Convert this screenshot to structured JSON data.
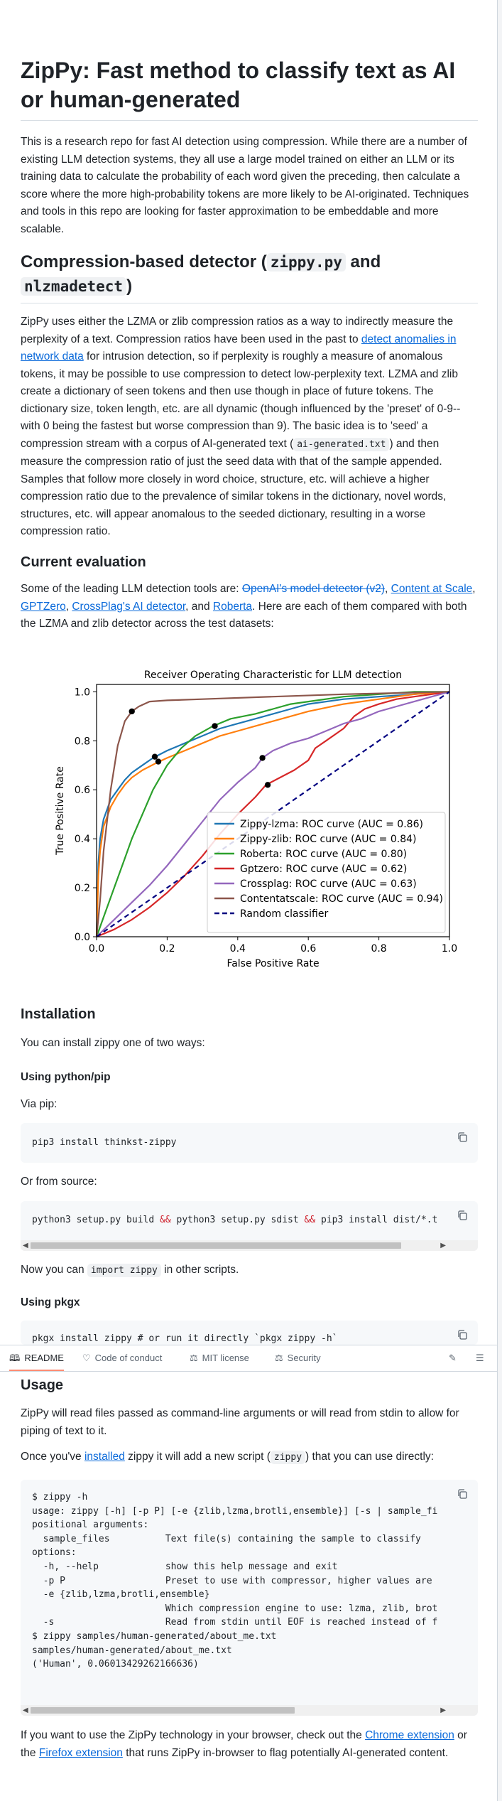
{
  "readme": {
    "title": "ZipPy: Fast method to classify text as AI or human-generated",
    "intro": "This is a research repo for fast AI detection using compression. While there are a number of existing LLM detection systems, they all use a large model trained on either an LLM or its training data to calculate the probability of each word given the preceding, then calculate a score where the more high-probability tokens are more likely to be AI-originated. Techniques and tools in this repo are looking for faster approximation to be embeddable and more scalable.",
    "section1": {
      "title_pre": "Compression-based detector (",
      "code1": "zippy.py",
      "title_mid": " and",
      "code2": "nlzmadetect",
      "title_post": ")",
      "p_a": "ZipPy uses either the LZMA or zlib compression ratios as a way to indirectly measure the perplexity of a text. Compression ratios have been used in the past to ",
      "link": "detect anomalies in network data",
      "p_b": " for intrusion detection, so if perplexity is roughly a measure of anomalous tokens, it may be possible to use compression to detect low-perplexity text. LZMA and zlib create a dictionary of seen tokens and then use though in place of future tokens. The dictionary size, token length, etc. are all dynamic (though influenced by the 'preset' of 0-9--with 0 being the fastest but worse compression than 9). The basic idea is to 'seed' a compression stream with a corpus of AI-generated text (",
      "code3": "ai-generated.txt",
      "p_c": ") and then measure the compression ratio of just the seed data with that of the sample appended. Samples that follow more closely in word choice, structure, etc. will achieve a higher compression ratio due to the prevalence of similar tokens in the dictionary, novel words, structures, etc. will appear anomalous to the seeded dictionary, resulting in a worse compression ratio."
    },
    "evaluation": {
      "title": "Current evaluation",
      "p_a": "Some of the leading LLM detection tools are: ",
      "link1": "OpenAI's model detector (v2)",
      "sep1": ", ",
      "link2": "Content at Scale",
      "sep2": ", ",
      "link3": "GPTZero",
      "sep3": ", ",
      "link4": "CrossPlag's AI detector",
      "sep4": ", and ",
      "link5": "Roberta",
      "p_b": ". Here are each of them compared with both the LZMA and zlib detector across the test datasets:"
    },
    "installation": {
      "title": "Installation",
      "p": "You can install zippy one of two ways:",
      "pip_title": "Using python/pip",
      "via_pip": "Via pip:",
      "pip_cmd": "pip3 install thinkst-zippy",
      "or_source": "Or from source:",
      "src_cmd_1": "python3 setup.py build ",
      "src_op1": "&&",
      "src_cmd_2": " python3 setup.py sdist ",
      "src_op2": "&&",
      "src_cmd_3": " pip3 install dist/*.t",
      "now_pre": "Now you can ",
      "now_code": "import zippy",
      "now_post": " in other scripts.",
      "pkgx_title": "Using pkgx",
      "pkgx_cmd": "pkgx install zippy # or run it directly `pkgx zippy -h`"
    },
    "usage": {
      "title": "Usage",
      "p1": "ZipPy will read files passed as command-line arguments or will read from stdin to allow for piping of text to it.",
      "p2_pre": "Once you've ",
      "p2_link": "installed",
      "p2_mid": " zippy it will add a new script (",
      "p2_code": "zippy",
      "p2_post": ") that you can use directly:",
      "code_lines": [
        "$ zippy -h",
        "usage: zippy [-h] [-p P] [-e {zlib,lzma,brotli,ensemble}] [-s | sample_fi",
        "",
        "positional arguments:",
        "  sample_files          Text file(s) containing the sample to classify",
        "",
        "options:",
        "  -h, --help            show this help message and exit",
        "  -p P                  Preset to use with compressor, higher values are",
        "  -e {zlib,lzma,brotli,ensemble}",
        "                        Which compression engine to use: lzma, zlib, brot",
        "  -s                    Read from stdin until EOF is reached instead of f",
        "$ zippy samples/human-generated/about_me.txt",
        "samples/human-generated/about_me.txt",
        "('Human', 0.06013429262166636)"
      ],
      "p3_pre": "If you want to use the ZipPy technology in your browser, check out the ",
      "p3_link1": "Chrome extension",
      "p3_mid": " or the ",
      "p3_link2": "Firefox extension",
      "p3_post": " that runs ZipPy in-browser to flag potentially AI-generated content."
    }
  },
  "tabs": {
    "readme": "README",
    "conduct": "Code of conduct",
    "license": "MIT license",
    "security": "Security"
  },
  "icons": {
    "copy": "copy-icon",
    "book": "book-icon",
    "heart": "heart-icon",
    "scale": "scale-icon",
    "edit": "pencil-icon",
    "toc": "list-icon"
  },
  "chart_data": {
    "type": "line",
    "title": "Receiver Operating Characteristic for LLM detection",
    "xlabel": "False Positive Rate",
    "ylabel": "True Positive Rate",
    "xlim": [
      0,
      1
    ],
    "ylim": [
      0,
      1.03
    ],
    "xticks": [
      "0.0",
      "0.2",
      "0.4",
      "0.6",
      "0.8",
      "1.0"
    ],
    "yticks": [
      "0.0",
      "0.2",
      "0.4",
      "0.6",
      "0.8",
      "1.0"
    ],
    "legend_position": "lower-right",
    "series": [
      {
        "name": "Zippy-lzma: ROC curve (AUC = 0.86)",
        "color": "#1f77b4",
        "x": [
          0,
          0.005,
          0.01,
          0.02,
          0.04,
          0.06,
          0.08,
          0.1,
          0.13,
          0.16,
          0.2,
          0.25,
          0.3,
          0.35,
          0.4,
          0.45,
          0.5,
          0.55,
          0.6,
          0.7,
          0.8,
          0.9,
          1.0
        ],
        "y": [
          0,
          0.3,
          0.4,
          0.48,
          0.56,
          0.6,
          0.64,
          0.67,
          0.7,
          0.73,
          0.76,
          0.79,
          0.82,
          0.85,
          0.87,
          0.89,
          0.91,
          0.93,
          0.95,
          0.97,
          0.98,
          0.99,
          1.0
        ],
        "marker": [
          0.165,
          0.735
        ]
      },
      {
        "name": "Zippy-zlib: ROC curve (AUC = 0.84)",
        "color": "#ff7f0e",
        "x": [
          0,
          0.005,
          0.01,
          0.02,
          0.04,
          0.06,
          0.08,
          0.1,
          0.13,
          0.17,
          0.2,
          0.25,
          0.3,
          0.35,
          0.4,
          0.45,
          0.5,
          0.55,
          0.6,
          0.7,
          0.8,
          0.9,
          1.0
        ],
        "y": [
          0,
          0.25,
          0.35,
          0.45,
          0.53,
          0.58,
          0.62,
          0.65,
          0.68,
          0.71,
          0.73,
          0.76,
          0.79,
          0.82,
          0.84,
          0.86,
          0.88,
          0.9,
          0.92,
          0.95,
          0.97,
          0.99,
          1.0
        ],
        "marker": [
          0.175,
          0.715
        ]
      },
      {
        "name": "Roberta: ROC curve (AUC = 0.80)",
        "color": "#2ca02c",
        "x": [
          0,
          0.02,
          0.05,
          0.08,
          0.1,
          0.13,
          0.16,
          0.2,
          0.24,
          0.28,
          0.33,
          0.38,
          0.45,
          0.5,
          0.55,
          0.6,
          0.7,
          0.8,
          0.9,
          1.0
        ],
        "y": [
          0,
          0.08,
          0.2,
          0.32,
          0.4,
          0.5,
          0.6,
          0.7,
          0.77,
          0.82,
          0.86,
          0.89,
          0.91,
          0.93,
          0.95,
          0.96,
          0.98,
          0.99,
          1.0,
          1.0
        ],
        "marker": [
          0.335,
          0.86
        ]
      },
      {
        "name": "Gptzero: ROC curve (AUC = 0.62)",
        "color": "#d62728",
        "x": [
          0,
          0.05,
          0.1,
          0.15,
          0.2,
          0.25,
          0.3,
          0.35,
          0.4,
          0.45,
          0.48,
          0.52,
          0.56,
          0.6,
          0.62,
          0.65,
          0.7,
          0.73,
          0.76,
          0.8,
          0.85,
          0.9,
          0.95,
          1.0
        ],
        "y": [
          0,
          0.03,
          0.07,
          0.12,
          0.18,
          0.25,
          0.33,
          0.42,
          0.5,
          0.57,
          0.62,
          0.65,
          0.68,
          0.72,
          0.77,
          0.8,
          0.85,
          0.9,
          0.93,
          0.95,
          0.97,
          0.98,
          0.99,
          1.0
        ],
        "marker": [
          0.485,
          0.62
        ]
      },
      {
        "name": "Crossplag: ROC curve (AUC = 0.63)",
        "color": "#9467bd",
        "x": [
          0,
          0.05,
          0.1,
          0.15,
          0.2,
          0.25,
          0.3,
          0.35,
          0.4,
          0.45,
          0.47,
          0.5,
          0.55,
          0.6,
          0.65,
          0.7,
          0.75,
          0.8,
          0.85,
          0.9,
          0.95,
          1.0
        ],
        "y": [
          0,
          0.07,
          0.14,
          0.21,
          0.29,
          0.38,
          0.47,
          0.56,
          0.63,
          0.69,
          0.73,
          0.76,
          0.79,
          0.81,
          0.84,
          0.87,
          0.89,
          0.92,
          0.94,
          0.96,
          0.98,
          1.0
        ],
        "marker": [
          0.47,
          0.73
        ]
      },
      {
        "name": "Contentatscale: ROC curve (AUC = 0.94)",
        "color": "#8c564b",
        "x": [
          0,
          0.01,
          0.02,
          0.04,
          0.06,
          0.08,
          0.1,
          0.12,
          0.15,
          0.2,
          0.3,
          0.5,
          0.7,
          0.85,
          1.0
        ],
        "y": [
          0,
          0.15,
          0.35,
          0.6,
          0.78,
          0.88,
          0.92,
          0.94,
          0.96,
          0.965,
          0.97,
          0.98,
          0.99,
          0.995,
          1.0
        ],
        "marker": [
          0.1,
          0.92
        ]
      },
      {
        "name": "Random classifier",
        "color": "#000080",
        "dashed": true,
        "x": [
          0,
          1
        ],
        "y": [
          0,
          1
        ]
      }
    ]
  }
}
